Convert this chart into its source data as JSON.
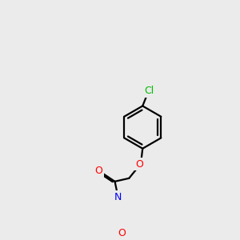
{
  "background_color": "#ebebeb",
  "bond_color": "#000000",
  "atom_colors": {
    "O": "#ff0000",
    "N": "#0000ff",
    "Cl": "#00bb00",
    "C": "#000000"
  },
  "figsize": [
    3.0,
    3.0
  ],
  "dpi": 100
}
